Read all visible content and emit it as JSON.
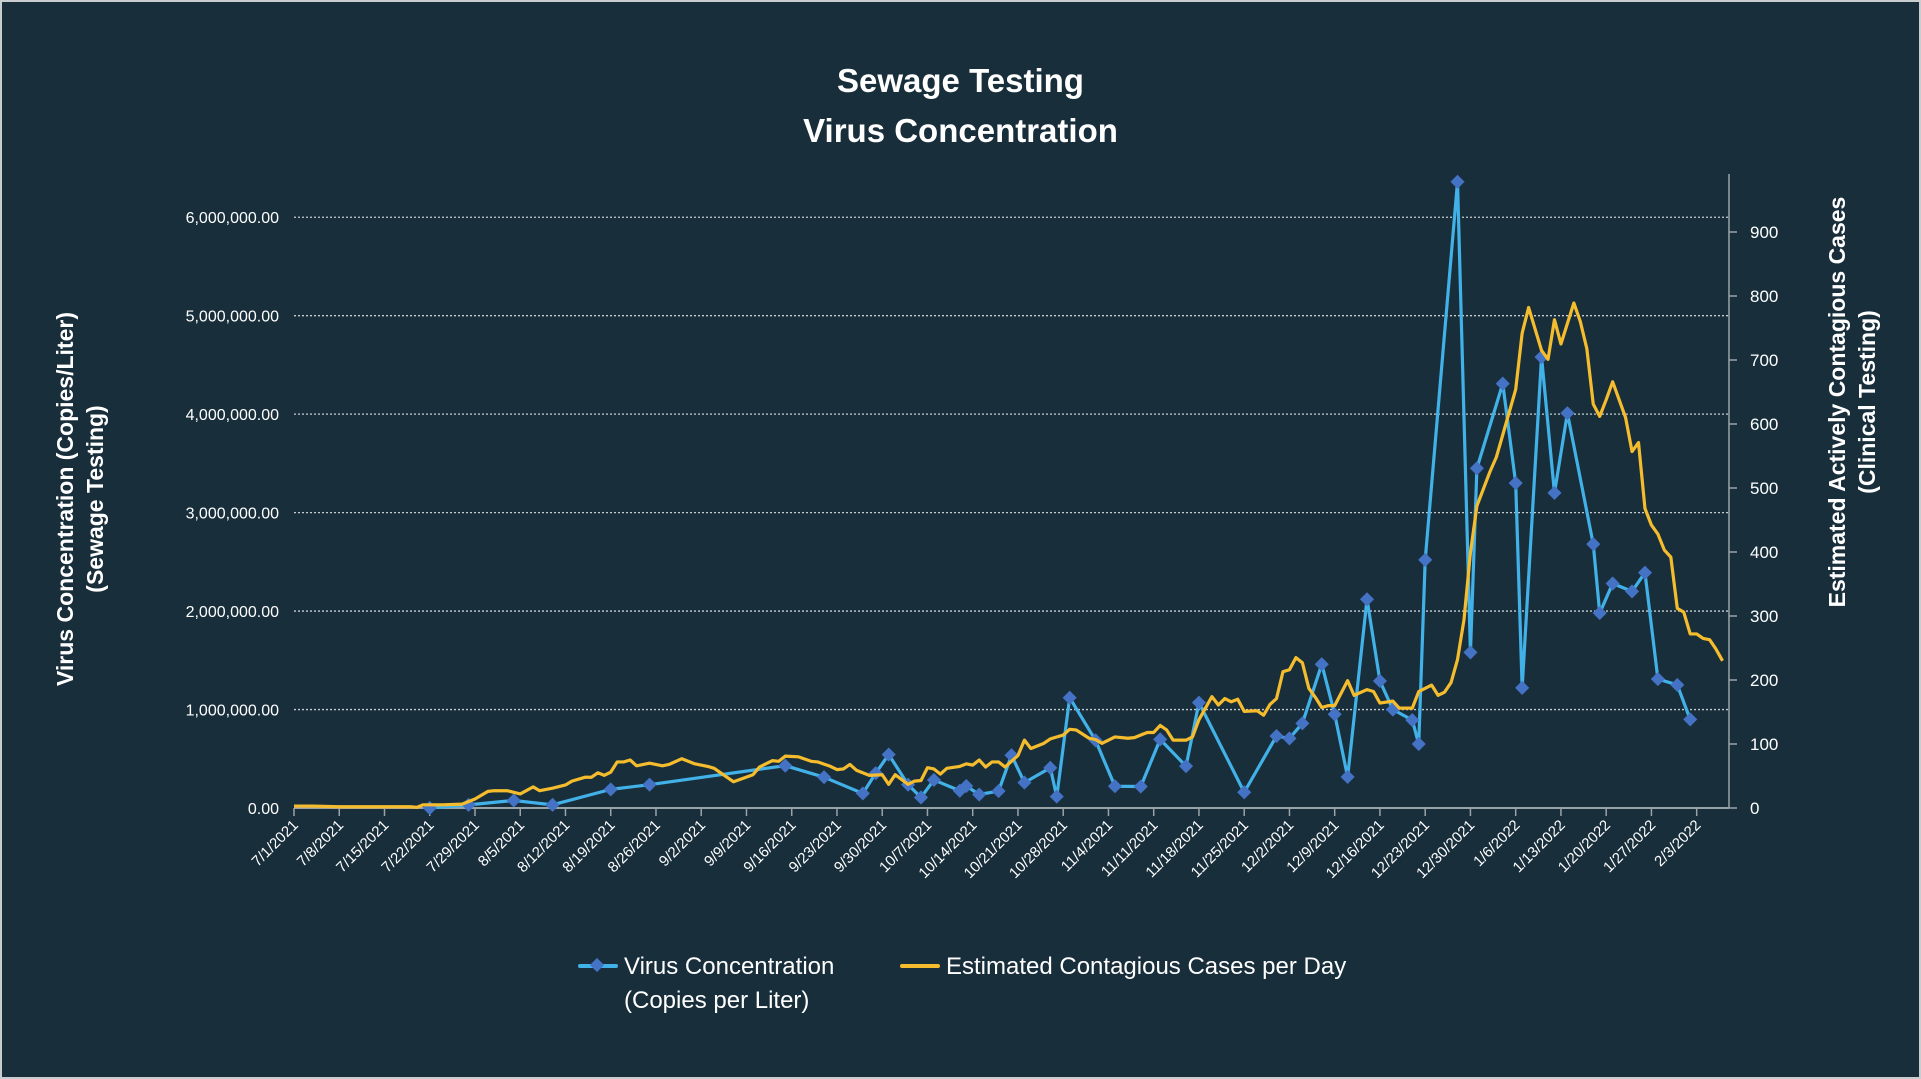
{
  "title": {
    "line1": "Sewage Testing",
    "line2": "Virus Concentration"
  },
  "chart_data": {
    "type": "line",
    "title": "Sewage Testing Virus Concentration",
    "x_type": "date",
    "xlim": [
      "7/1/2021",
      "2/8/2022"
    ],
    "x_tick_labels": [
      "7/1/2021",
      "7/8/2021",
      "7/15/2021",
      "7/22/2021",
      "7/29/2021",
      "8/5/2021",
      "8/12/2021",
      "8/19/2021",
      "8/26/2021",
      "9/2/2021",
      "9/9/2021",
      "9/16/2021",
      "9/23/2021",
      "9/30/2021",
      "10/7/2021",
      "10/14/2021",
      "10/21/2021",
      "10/28/2021",
      "11/4/2021",
      "11/11/2021",
      "11/18/2021",
      "11/25/2021",
      "12/2/2021",
      "12/9/2021",
      "12/16/2021",
      "12/23/2021",
      "12/30/2021",
      "1/6/2022",
      "1/13/2022",
      "1/20/2022",
      "1/27/2022",
      "2/3/2022"
    ],
    "y_left": {
      "label_line1": "Virus Concentration (Copies/Liter)",
      "label_line2": "(Sewage Testing)",
      "ylim": [
        0,
        6500000
      ],
      "tick_labels": [
        "0.00",
        "1,000,000.00",
        "2,000,000.00",
        "3,000,000.00",
        "4,000,000.00",
        "5,000,000.00",
        "6,000,000.00"
      ],
      "ticks": [
        0,
        1000000,
        2000000,
        3000000,
        4000000,
        5000000,
        6000000
      ]
    },
    "y_right": {
      "label_line1": "Estimated Actively Contagious Cases",
      "label_line2": "(Clinical Testing)",
      "ylim": [
        0,
        1000
      ],
      "tick_labels": [
        "0",
        "100",
        "200",
        "300",
        "400",
        "500",
        "600",
        "700",
        "800",
        "900"
      ],
      "ticks": [
        0,
        100,
        200,
        300,
        400,
        500,
        600,
        700,
        800,
        900
      ]
    },
    "grid": "horizontal dotted at left-axis ticks",
    "legend_position": "bottom",
    "series": [
      {
        "name": "Virus Concentration (Copies per Liter)",
        "legend_line1": "Virus Concentration",
        "legend_line2": "(Copies per Liter)",
        "axis": "left",
        "color": "#41b1e8",
        "marker": "diamond",
        "marker_color": "#4472c4",
        "points": [
          [
            "7/22/2021",
            0
          ],
          [
            "7/28/2021",
            32000
          ],
          [
            "8/4/2021",
            77000
          ],
          [
            "8/10/2021",
            32000
          ],
          [
            "8/19/2021",
            189000
          ],
          [
            "8/25/2021",
            237000
          ],
          [
            "9/15/2021",
            430000
          ],
          [
            "9/21/2021",
            313000
          ],
          [
            "9/27/2021",
            148000
          ],
          [
            "9/29/2021",
            354000
          ],
          [
            "10/1/2021",
            543000
          ],
          [
            "10/4/2021",
            237000
          ],
          [
            "10/6/2021",
            107000
          ],
          [
            "10/8/2021",
            285000
          ],
          [
            "10/12/2021",
            175000
          ],
          [
            "10/13/2021",
            223000
          ],
          [
            "10/15/2021",
            137000
          ],
          [
            "10/18/2021",
            172000
          ],
          [
            "10/20/2021",
            536000
          ],
          [
            "10/22/2021",
            258000
          ],
          [
            "10/26/2021",
            408000
          ],
          [
            "10/27/2021",
            116000
          ],
          [
            "10/29/2021",
            1120000
          ],
          [
            "11/2/2021",
            687000
          ],
          [
            "11/5/2021",
            221000
          ],
          [
            "11/9/2021",
            218000
          ],
          [
            "11/12/2021",
            697000
          ],
          [
            "11/16/2021",
            425000
          ],
          [
            "11/18/2021",
            1070000
          ],
          [
            "11/25/2021",
            160000
          ],
          [
            "11/30/2021",
            731000
          ],
          [
            "12/2/2021",
            707000
          ],
          [
            "12/4/2021",
            860000
          ],
          [
            "12/7/2021",
            1460000
          ],
          [
            "12/9/2021",
            952000
          ],
          [
            "12/11/2021",
            316000
          ],
          [
            "12/14/2021",
            2120000
          ],
          [
            "12/16/2021",
            1290000
          ],
          [
            "12/18/2021",
            1000000
          ],
          [
            "12/21/2021",
            893000
          ],
          [
            "12/22/2021",
            650000
          ],
          [
            "12/23/2021",
            2520000
          ],
          [
            "12/28/2021",
            6360000
          ],
          [
            "12/30/2021",
            1580000
          ],
          [
            "12/31/2021",
            3450000
          ],
          [
            "1/4/2022",
            4310000
          ],
          [
            "1/6/2022",
            3300000
          ],
          [
            "1/7/2022",
            1220000
          ],
          [
            "1/10/2022",
            4580000
          ],
          [
            "1/12/2022",
            3200000
          ],
          [
            "1/14/2022",
            4010000
          ],
          [
            "1/18/2022",
            2680000
          ],
          [
            "1/19/2022",
            1980000
          ],
          [
            "1/21/2022",
            2280000
          ],
          [
            "1/24/2022",
            2200000
          ],
          [
            "1/26/2022",
            2390000
          ],
          [
            "1/28/2022",
            1310000
          ],
          [
            "1/31/2022",
            1250000
          ],
          [
            "2/2/2022",
            900000
          ]
        ]
      },
      {
        "name": "Estimated Contagious Cases per Day",
        "legend_line1": "Estimated Contagious Cases per Day",
        "axis": "right",
        "color": "#f5bd2e",
        "marker": "none",
        "points": [
          [
            "7/1/2021",
            3
          ],
          [
            "7/4/2021",
            3
          ],
          [
            "7/8/2021",
            2
          ],
          [
            "7/15/2021",
            2
          ],
          [
            "7/19/2021",
            2
          ],
          [
            "7/20/2021",
            1
          ],
          [
            "7/21/2021",
            5
          ],
          [
            "7/24/2021",
            5
          ],
          [
            "7/27/2021",
            6
          ],
          [
            "7/29/2021",
            14
          ],
          [
            "7/31/2021",
            26
          ],
          [
            "8/1/2021",
            27
          ],
          [
            "8/3/2021",
            27
          ],
          [
            "8/5/2021",
            22
          ],
          [
            "8/7/2021",
            33
          ],
          [
            "8/8/2021",
            27
          ],
          [
            "8/10/2021",
            31
          ],
          [
            "8/12/2021",
            36
          ],
          [
            "8/13/2021",
            42
          ],
          [
            "8/15/2021",
            48
          ],
          [
            "8/16/2021",
            48
          ],
          [
            "8/17/2021",
            55
          ],
          [
            "8/18/2021",
            51
          ],
          [
            "8/19/2021",
            56
          ],
          [
            "8/20/2021",
            72
          ],
          [
            "8/21/2021",
            72
          ],
          [
            "8/22/2021",
            75
          ],
          [
            "8/23/2021",
            66
          ],
          [
            "8/25/2021",
            70
          ],
          [
            "8/27/2021",
            66
          ],
          [
            "8/28/2021",
            68
          ],
          [
            "8/30/2021",
            77
          ],
          [
            "9/1/2021",
            69
          ],
          [
            "9/3/2021",
            65
          ],
          [
            "9/4/2021",
            62
          ],
          [
            "9/7/2021",
            41
          ],
          [
            "9/10/2021",
            52
          ],
          [
            "9/11/2021",
            64
          ],
          [
            "9/12/2021",
            69
          ],
          [
            "9/13/2021",
            74
          ],
          [
            "9/14/2021",
            73
          ],
          [
            "9/15/2021",
            81
          ],
          [
            "9/17/2021",
            80
          ],
          [
            "9/19/2021",
            73
          ],
          [
            "9/20/2021",
            72
          ],
          [
            "9/22/2021",
            65
          ],
          [
            "9/23/2021",
            60
          ],
          [
            "9/24/2021",
            61
          ],
          [
            "9/25/2021",
            68
          ],
          [
            "9/26/2021",
            59
          ],
          [
            "9/28/2021",
            51
          ],
          [
            "9/30/2021",
            52
          ],
          [
            "10/1/2021",
            37
          ],
          [
            "10/2/2021",
            52
          ],
          [
            "10/4/2021",
            37
          ],
          [
            "10/5/2021",
            42
          ],
          [
            "10/6/2021",
            43
          ],
          [
            "10/7/2021",
            63
          ],
          [
            "10/8/2021",
            61
          ],
          [
            "10/9/2021",
            53
          ],
          [
            "10/10/2021",
            62
          ],
          [
            "10/12/2021",
            65
          ],
          [
            "10/13/2021",
            69
          ],
          [
            "10/14/2021",
            67
          ],
          [
            "10/15/2021",
            75
          ],
          [
            "10/16/2021",
            64
          ],
          [
            "10/17/2021",
            72
          ],
          [
            "10/18/2021",
            72
          ],
          [
            "10/19/2021",
            64
          ],
          [
            "10/21/2021",
            82
          ],
          [
            "10/22/2021",
            106
          ],
          [
            "10/23/2021",
            93
          ],
          [
            "10/25/2021",
            101
          ],
          [
            "10/26/2021",
            108
          ],
          [
            "10/28/2021",
            114
          ],
          [
            "10/29/2021",
            123
          ],
          [
            "10/30/2021",
            122
          ],
          [
            "11/1/2021",
            109
          ],
          [
            "11/2/2021",
            107
          ],
          [
            "11/3/2021",
            101
          ],
          [
            "11/5/2021",
            111
          ],
          [
            "11/7/2021",
            109
          ],
          [
            "11/8/2021",
            110
          ],
          [
            "11/10/2021",
            118
          ],
          [
            "11/11/2021",
            118
          ],
          [
            "11/12/2021",
            129
          ],
          [
            "11/13/2021",
            122
          ],
          [
            "11/14/2021",
            106
          ],
          [
            "11/16/2021",
            106
          ],
          [
            "11/17/2021",
            111
          ],
          [
            "11/18/2021",
            138
          ],
          [
            "11/20/2021",
            174
          ],
          [
            "11/21/2021",
            161
          ],
          [
            "11/22/2021",
            171
          ],
          [
            "11/23/2021",
            166
          ],
          [
            "11/24/2021",
            170
          ],
          [
            "11/25/2021",
            151
          ],
          [
            "11/27/2021",
            152
          ],
          [
            "11/28/2021",
            145
          ],
          [
            "11/29/2021",
            162
          ],
          [
            "11/30/2021",
            171
          ],
          [
            "12/1/2021",
            213
          ],
          [
            "12/2/2021",
            216
          ],
          [
            "12/3/2021",
            235
          ],
          [
            "12/4/2021",
            227
          ],
          [
            "12/5/2021",
            187
          ],
          [
            "12/6/2021",
            173
          ],
          [
            "12/7/2021",
            157
          ],
          [
            "12/8/2021",
            160
          ],
          [
            "12/9/2021",
            160
          ],
          [
            "12/11/2021",
            199
          ],
          [
            "12/12/2021",
            176
          ],
          [
            "12/14/2021",
            185
          ],
          [
            "12/15/2021",
            182
          ],
          [
            "12/16/2021",
            164
          ],
          [
            "12/18/2021",
            167
          ],
          [
            "12/19/2021",
            156
          ],
          [
            "12/21/2021",
            156
          ],
          [
            "12/22/2021",
            182
          ],
          [
            "12/24/2021",
            192
          ],
          [
            "12/25/2021",
            176
          ],
          [
            "12/26/2021",
            181
          ],
          [
            "12/27/2021",
            196
          ],
          [
            "12/28/2021",
            232
          ],
          [
            "12/29/2021",
            294
          ],
          [
            "12/30/2021",
            399
          ],
          [
            "12/31/2021",
            472
          ],
          [
            "1/2/2022",
            525
          ],
          [
            "1/3/2022",
            548
          ],
          [
            "1/4/2022",
            583
          ],
          [
            "1/6/2022",
            654
          ],
          [
            "1/7/2022",
            742
          ],
          [
            "1/8/2022",
            782
          ],
          [
            "1/10/2022",
            715
          ],
          [
            "1/11/2022",
            701
          ],
          [
            "1/12/2022",
            763
          ],
          [
            "1/13/2022",
            725
          ],
          [
            "1/15/2022",
            789
          ],
          [
            "1/16/2022",
            760
          ],
          [
            "1/17/2022",
            718
          ],
          [
            "1/18/2022",
            631
          ],
          [
            "1/19/2022",
            612
          ],
          [
            "1/20/2022",
            638
          ],
          [
            "1/21/2022",
            666
          ],
          [
            "1/23/2022",
            610
          ],
          [
            "1/24/2022",
            557
          ],
          [
            "1/25/2022",
            571
          ],
          [
            "1/26/2022",
            468
          ],
          [
            "1/27/2022",
            442
          ],
          [
            "1/28/2022",
            428
          ],
          [
            "1/29/2022",
            403
          ],
          [
            "1/30/2022",
            392
          ],
          [
            "1/31/2022",
            312
          ],
          [
            "2/1/2022",
            306
          ],
          [
            "2/2/2022",
            272
          ],
          [
            "2/3/2022",
            272
          ],
          [
            "2/4/2022",
            265
          ],
          [
            "2/5/2022",
            263
          ],
          [
            "2/6/2022",
            248
          ],
          [
            "2/7/2022",
            230
          ]
        ]
      }
    ]
  }
}
